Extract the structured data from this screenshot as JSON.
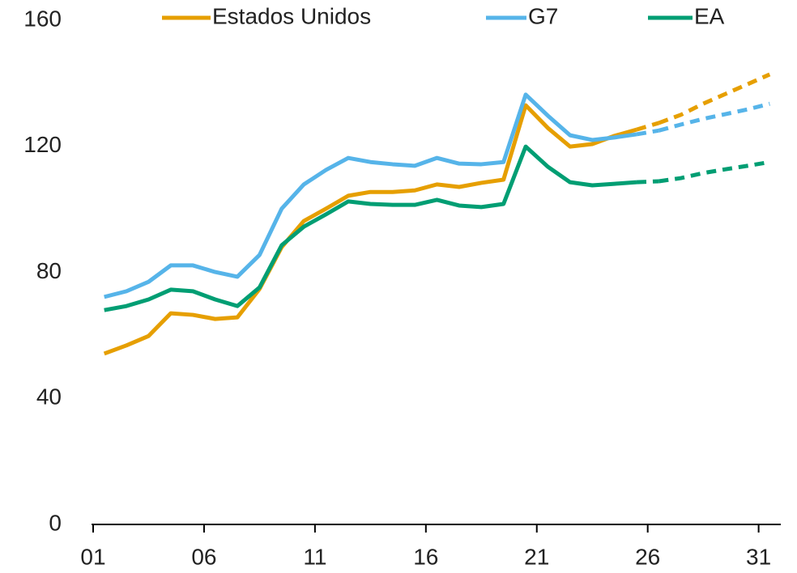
{
  "chart_data": {
    "type": "line",
    "x": [
      1.5,
      2.5,
      3.5,
      4.5,
      5.5,
      6.5,
      7.5,
      8.5,
      9.5,
      10.5,
      11.5,
      12.5,
      13.5,
      14.5,
      15.5,
      16.5,
      17.5,
      18.5,
      19.5,
      20.5,
      21.5,
      22.5,
      23.5,
      24.5,
      25.5,
      26.5,
      27.5,
      28.5,
      29.5,
      30.5,
      31.5
    ],
    "series": [
      {
        "name": "Estados Unidos",
        "color": "#e69f00",
        "values": [
          54.2,
          56.8,
          59.8,
          67,
          66.5,
          65.2,
          65.7,
          74.7,
          88,
          96.3,
          100.2,
          104.3,
          105.5,
          105.5,
          106,
          107.9,
          107.1,
          108.4,
          109.4,
          133,
          125.8,
          119.9,
          120.7,
          123.3,
          125.3,
          null,
          null,
          null,
          null,
          null,
          null
        ],
        "forecast_values": [
          null,
          null,
          null,
          null,
          null,
          null,
          null,
          null,
          null,
          null,
          null,
          null,
          null,
          null,
          null,
          null,
          null,
          null,
          null,
          null,
          null,
          null,
          null,
          null,
          null,
          127.4,
          130,
          133.5,
          136.6,
          139.7,
          142.8
        ]
      },
      {
        "name": "G7",
        "color": "#56b4e9",
        "values": [
          72.2,
          74,
          77,
          82.2,
          82.2,
          80.1,
          78.6,
          85.5,
          100.2,
          107.9,
          112.5,
          116.3,
          115,
          114.3,
          113.8,
          116.3,
          114.5,
          114.3,
          115,
          136.4,
          129.7,
          123.5,
          122,
          122.8,
          123.8,
          null,
          null,
          null,
          null,
          null,
          null
        ],
        "forecast_values": [
          null,
          null,
          null,
          null,
          null,
          null,
          null,
          null,
          null,
          null,
          null,
          null,
          null,
          null,
          null,
          null,
          null,
          null,
          null,
          null,
          null,
          null,
          null,
          null,
          null,
          125,
          126.9,
          128.7,
          130.2,
          131.7,
          133.5
        ]
      },
      {
        "name": "EA",
        "color": "#009e73",
        "values": [
          68,
          69.3,
          71.4,
          74.5,
          74,
          71.4,
          69.3,
          75.2,
          88.6,
          94.5,
          98.4,
          102.5,
          101.7,
          101.4,
          101.4,
          103,
          101.2,
          100.7,
          101.7,
          119.9,
          113.5,
          108.6,
          107.6,
          108.1,
          108.6,
          null,
          null,
          null,
          null,
          null,
          null
        ],
        "forecast_values": [
          null,
          null,
          null,
          null,
          null,
          null,
          null,
          null,
          null,
          null,
          null,
          null,
          null,
          null,
          null,
          null,
          null,
          null,
          null,
          null,
          null,
          null,
          null,
          null,
          null,
          108.9,
          109.9,
          111.5,
          112.7,
          113.8,
          115
        ]
      }
    ],
    "xlim": [
      1,
      32
    ],
    "xticks": [
      {
        "value": 1,
        "label": "01"
      },
      {
        "value": 6,
        "label": "06"
      },
      11,
      16,
      21,
      26,
      31
    ],
    "ylim": [
      0,
      160
    ],
    "yticks": [
      0,
      40,
      80,
      120,
      160
    ],
    "grid": false,
    "legend": "top"
  }
}
